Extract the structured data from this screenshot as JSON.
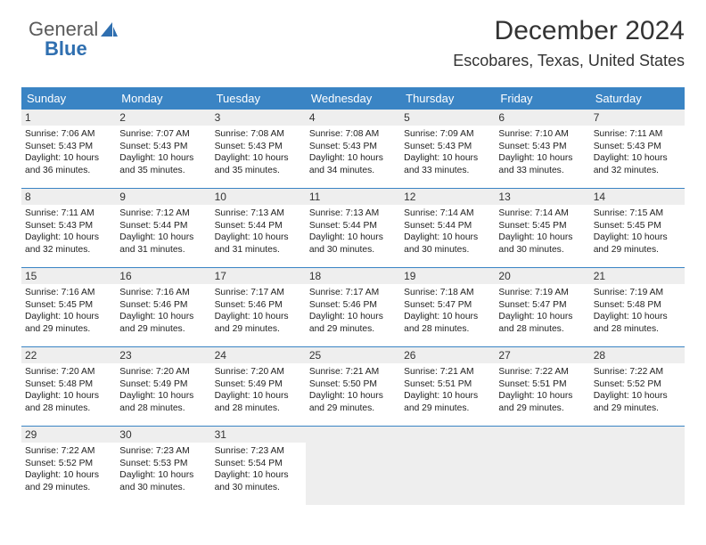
{
  "brand": {
    "word1": "General",
    "word2": "Blue"
  },
  "title": "December 2024",
  "subtitle": "Escobares, Texas, United States",
  "colors": {
    "accent": "#3a84c4",
    "dayHeaderBg": "#eeeeee",
    "emptyBg": "#eeeeee",
    "pageBg": "#ffffff",
    "text": "#222222"
  },
  "typography": {
    "title_fontsize": 30,
    "subtitle_fontsize": 18,
    "header_fontsize": 13,
    "daynum_fontsize": 12,
    "body_fontsize": 10.3
  },
  "layout": {
    "columns": 7,
    "column_width_pct": 14.2857
  },
  "weekdays": [
    "Sunday",
    "Monday",
    "Tuesday",
    "Wednesday",
    "Thursday",
    "Friday",
    "Saturday"
  ],
  "days": [
    {
      "n": 1,
      "sunrise": "7:06 AM",
      "sunset": "5:43 PM",
      "daylight": "10 hours and 36 minutes."
    },
    {
      "n": 2,
      "sunrise": "7:07 AM",
      "sunset": "5:43 PM",
      "daylight": "10 hours and 35 minutes."
    },
    {
      "n": 3,
      "sunrise": "7:08 AM",
      "sunset": "5:43 PM",
      "daylight": "10 hours and 35 minutes."
    },
    {
      "n": 4,
      "sunrise": "7:08 AM",
      "sunset": "5:43 PM",
      "daylight": "10 hours and 34 minutes."
    },
    {
      "n": 5,
      "sunrise": "7:09 AM",
      "sunset": "5:43 PM",
      "daylight": "10 hours and 33 minutes."
    },
    {
      "n": 6,
      "sunrise": "7:10 AM",
      "sunset": "5:43 PM",
      "daylight": "10 hours and 33 minutes."
    },
    {
      "n": 7,
      "sunrise": "7:11 AM",
      "sunset": "5:43 PM",
      "daylight": "10 hours and 32 minutes."
    },
    {
      "n": 8,
      "sunrise": "7:11 AM",
      "sunset": "5:43 PM",
      "daylight": "10 hours and 32 minutes."
    },
    {
      "n": 9,
      "sunrise": "7:12 AM",
      "sunset": "5:44 PM",
      "daylight": "10 hours and 31 minutes."
    },
    {
      "n": 10,
      "sunrise": "7:13 AM",
      "sunset": "5:44 PM",
      "daylight": "10 hours and 31 minutes."
    },
    {
      "n": 11,
      "sunrise": "7:13 AM",
      "sunset": "5:44 PM",
      "daylight": "10 hours and 30 minutes."
    },
    {
      "n": 12,
      "sunrise": "7:14 AM",
      "sunset": "5:44 PM",
      "daylight": "10 hours and 30 minutes."
    },
    {
      "n": 13,
      "sunrise": "7:14 AM",
      "sunset": "5:45 PM",
      "daylight": "10 hours and 30 minutes."
    },
    {
      "n": 14,
      "sunrise": "7:15 AM",
      "sunset": "5:45 PM",
      "daylight": "10 hours and 29 minutes."
    },
    {
      "n": 15,
      "sunrise": "7:16 AM",
      "sunset": "5:45 PM",
      "daylight": "10 hours and 29 minutes."
    },
    {
      "n": 16,
      "sunrise": "7:16 AM",
      "sunset": "5:46 PM",
      "daylight": "10 hours and 29 minutes."
    },
    {
      "n": 17,
      "sunrise": "7:17 AM",
      "sunset": "5:46 PM",
      "daylight": "10 hours and 29 minutes."
    },
    {
      "n": 18,
      "sunrise": "7:17 AM",
      "sunset": "5:46 PM",
      "daylight": "10 hours and 29 minutes."
    },
    {
      "n": 19,
      "sunrise": "7:18 AM",
      "sunset": "5:47 PM",
      "daylight": "10 hours and 28 minutes."
    },
    {
      "n": 20,
      "sunrise": "7:19 AM",
      "sunset": "5:47 PM",
      "daylight": "10 hours and 28 minutes."
    },
    {
      "n": 21,
      "sunrise": "7:19 AM",
      "sunset": "5:48 PM",
      "daylight": "10 hours and 28 minutes."
    },
    {
      "n": 22,
      "sunrise": "7:20 AM",
      "sunset": "5:48 PM",
      "daylight": "10 hours and 28 minutes."
    },
    {
      "n": 23,
      "sunrise": "7:20 AM",
      "sunset": "5:49 PM",
      "daylight": "10 hours and 28 minutes."
    },
    {
      "n": 24,
      "sunrise": "7:20 AM",
      "sunset": "5:49 PM",
      "daylight": "10 hours and 28 minutes."
    },
    {
      "n": 25,
      "sunrise": "7:21 AM",
      "sunset": "5:50 PM",
      "daylight": "10 hours and 29 minutes."
    },
    {
      "n": 26,
      "sunrise": "7:21 AM",
      "sunset": "5:51 PM",
      "daylight": "10 hours and 29 minutes."
    },
    {
      "n": 27,
      "sunrise": "7:22 AM",
      "sunset": "5:51 PM",
      "daylight": "10 hours and 29 minutes."
    },
    {
      "n": 28,
      "sunrise": "7:22 AM",
      "sunset": "5:52 PM",
      "daylight": "10 hours and 29 minutes."
    },
    {
      "n": 29,
      "sunrise": "7:22 AM",
      "sunset": "5:52 PM",
      "daylight": "10 hours and 29 minutes."
    },
    {
      "n": 30,
      "sunrise": "7:23 AM",
      "sunset": "5:53 PM",
      "daylight": "10 hours and 30 minutes."
    },
    {
      "n": 31,
      "sunrise": "7:23 AM",
      "sunset": "5:54 PM",
      "daylight": "10 hours and 30 minutes."
    }
  ],
  "labels": {
    "sunrise": "Sunrise:",
    "sunset": "Sunset:",
    "daylight": "Daylight:"
  },
  "trailing_empty_cells": 4
}
